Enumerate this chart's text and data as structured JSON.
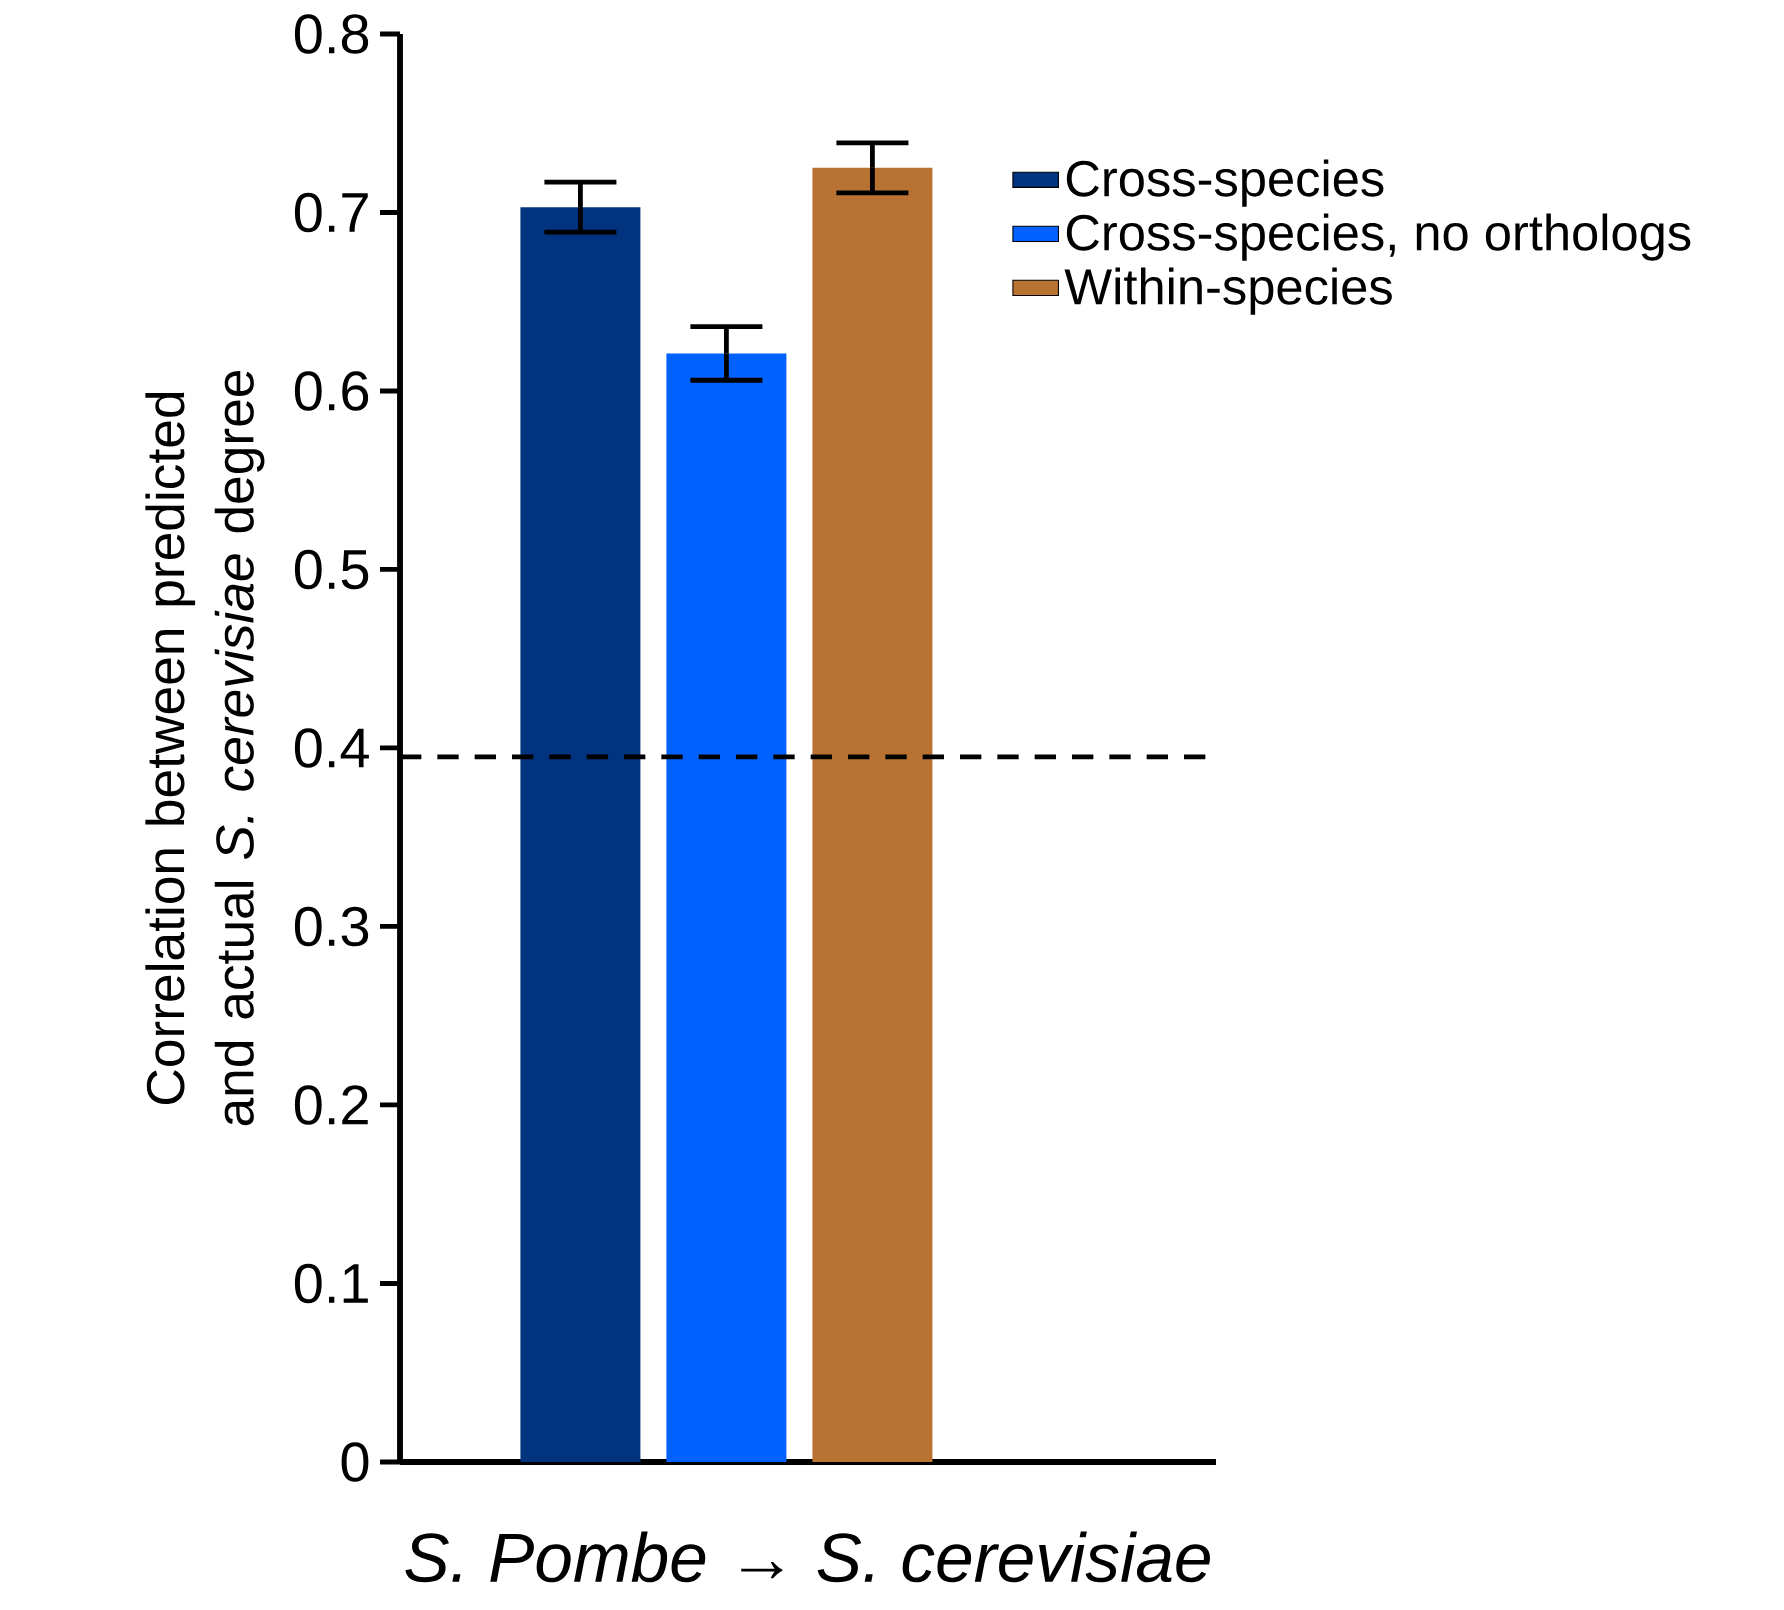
{
  "chart_data": {
    "type": "bar",
    "xlabel": "*S. Pombe* → *S. cerevisiae*",
    "ylabel": "Correlation between predicted and actual *S. cerevisiae* degree",
    "categories": [
      null
    ],
    "series": [
      {
        "name": "Cross-species",
        "color": "#02337f",
        "values": [
          0.703
        ],
        "errors": [
          0.014
        ]
      },
      {
        "name": "Cross-species, no orthologs",
        "color": "#0062fe",
        "values": [
          0.621
        ],
        "errors": [
          0.015
        ]
      },
      {
        "name": "Within-species",
        "color": "#b87333",
        "values": [
          0.725
        ],
        "errors": [
          0.014
        ]
      }
    ],
    "ylim": [
      0,
      0.8
    ],
    "yticks": [
      0,
      0.1,
      0.2,
      0.3,
      0.4,
      0.5,
      0.6,
      0.7,
      0.8
    ],
    "ref_lines": [
      {
        "axis": "y",
        "value": 0.395,
        "line_style": "dashed"
      }
    ],
    "legend": "top right"
  }
}
